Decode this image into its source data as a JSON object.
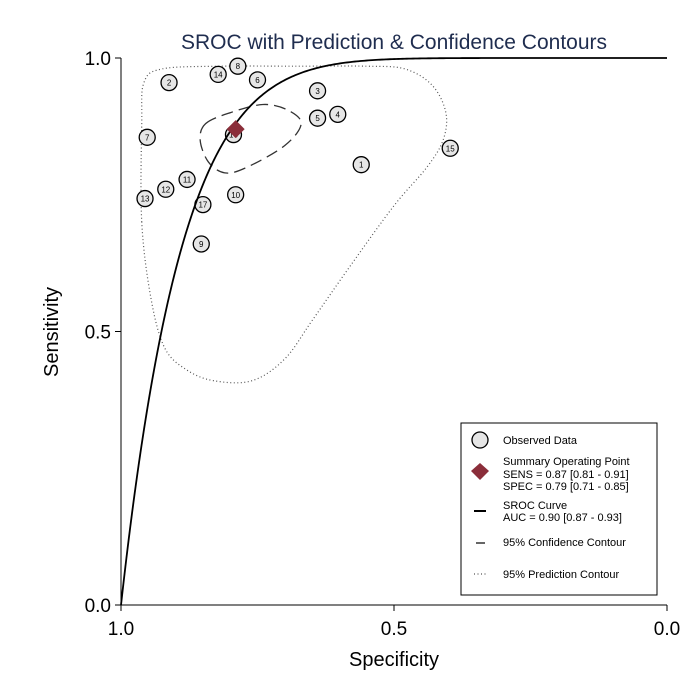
{
  "chart_data": {
    "type": "scatter",
    "title": "SROC with Prediction & Confidence Contours",
    "xlabel": "Specificity",
    "ylabel": "Sensitivity",
    "x_reversed": true,
    "xlim": [
      1.0,
      0.0
    ],
    "ylim": [
      0.0,
      1.0
    ],
    "xticks": [
      {
        "value": 1.0,
        "label": "1.0"
      },
      {
        "value": 0.5,
        "label": "0.5"
      },
      {
        "value": 0.0,
        "label": "0.0"
      }
    ],
    "yticks": [
      {
        "value": 0.0,
        "label": "0.0"
      },
      {
        "value": 0.5,
        "label": "0.5"
      },
      {
        "value": 1.0,
        "label": "1.0"
      }
    ],
    "grid": false,
    "legend_placement": "bottom-right",
    "observed_points": [
      {
        "id": "1",
        "spec": 0.56,
        "sens": 0.805
      },
      {
        "id": "2",
        "spec": 0.912,
        "sens": 0.955
      },
      {
        "id": "3",
        "spec": 0.64,
        "sens": 0.94
      },
      {
        "id": "4",
        "spec": 0.603,
        "sens": 0.897
      },
      {
        "id": "5",
        "spec": 0.64,
        "sens": 0.89
      },
      {
        "id": "6",
        "spec": 0.75,
        "sens": 0.96
      },
      {
        "id": "7",
        "spec": 0.952,
        "sens": 0.855
      },
      {
        "id": "8",
        "spec": 0.786,
        "sens": 0.985
      },
      {
        "id": "9",
        "spec": 0.853,
        "sens": 0.66
      },
      {
        "id": "10",
        "spec": 0.79,
        "sens": 0.75
      },
      {
        "id": "11",
        "spec": 0.879,
        "sens": 0.778
      },
      {
        "id": "12",
        "spec": 0.918,
        "sens": 0.76
      },
      {
        "id": "13",
        "spec": 0.956,
        "sens": 0.743
      },
      {
        "id": "14",
        "spec": 0.822,
        "sens": 0.97
      },
      {
        "id": "15",
        "spec": 0.397,
        "sens": 0.835
      },
      {
        "id": "16",
        "spec": 0.794,
        "sens": 0.86
      },
      {
        "id": "17",
        "spec": 0.85,
        "sens": 0.732
      }
    ],
    "summary_point": {
      "spec": 0.79,
      "sens": 0.87
    },
    "sroc_curve": {
      "auc": 0.9
    },
    "confidence_contour": [
      [
        0.845,
        0.88
      ],
      [
        0.8,
        0.9
      ],
      [
        0.74,
        0.915
      ],
      [
        0.695,
        0.905
      ],
      [
        0.67,
        0.88
      ],
      [
        0.7,
        0.84
      ],
      [
        0.77,
        0.8
      ],
      [
        0.81,
        0.79
      ],
      [
        0.84,
        0.81
      ],
      [
        0.855,
        0.85
      ],
      [
        0.845,
        0.88
      ]
    ],
    "prediction_contour": [
      [
        0.962,
        0.7
      ],
      [
        0.962,
        0.88
      ],
      [
        0.958,
        0.955
      ],
      [
        0.925,
        0.98
      ],
      [
        0.82,
        0.985
      ],
      [
        0.68,
        0.985
      ],
      [
        0.55,
        0.985
      ],
      [
        0.48,
        0.98
      ],
      [
        0.43,
        0.95
      ],
      [
        0.405,
        0.9
      ],
      [
        0.41,
        0.85
      ],
      [
        0.44,
        0.8
      ],
      [
        0.5,
        0.73
      ],
      [
        0.58,
        0.62
      ],
      [
        0.65,
        0.52
      ],
      [
        0.7,
        0.45
      ],
      [
        0.76,
        0.41
      ],
      [
        0.83,
        0.41
      ],
      [
        0.88,
        0.43
      ],
      [
        0.92,
        0.47
      ],
      [
        0.945,
        0.56
      ],
      [
        0.962,
        0.7
      ]
    ],
    "legend": {
      "observed": "Observed Data",
      "summary_title": "Summary Operating Point",
      "summary_sens": "SENS = 0.87 [0.81 - 0.91]",
      "summary_spec": "SPEC = 0.79 [0.71 - 0.85]",
      "sroc_title": "SROC Curve",
      "sroc_auc": "AUC = 0.90 [0.87 - 0.93]",
      "confidence": "95% Confidence Contour",
      "prediction": "95% Prediction Contour"
    },
    "colors": {
      "summary_marker": "#8b2e3a",
      "title": "#1f2d4f",
      "point_fill": "#e6e6e6"
    }
  }
}
